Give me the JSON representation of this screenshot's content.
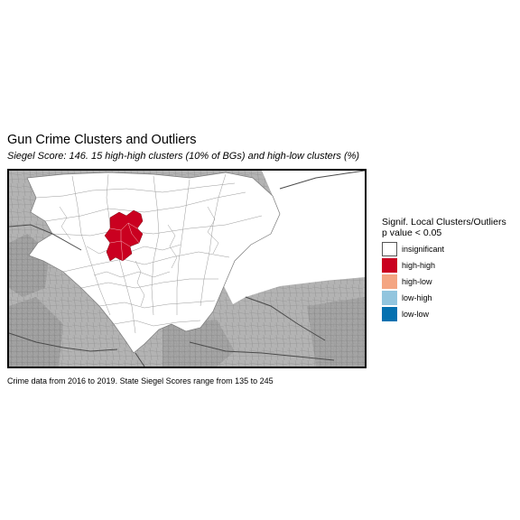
{
  "title": "Gun Crime Clusters and Outliers",
  "subtitle": "Siegel Score: 146. 15 high-high clusters (10% of BGs) and  high-low clusters (%)",
  "caption": "Crime data from 2016 to 2019. State Siegel Scores range from 135 to 245",
  "legend": {
    "title_line1": "Signif. Local Clusters/Outliers",
    "title_line2": "p value < 0.05",
    "items": [
      {
        "label": "insignificant",
        "color": "#FFFFFF"
      },
      {
        "label": "high-high",
        "color": "#CA0020"
      },
      {
        "label": "high-low",
        "color": "#F4A582"
      },
      {
        "label": "low-high",
        "color": "#92C5DE"
      },
      {
        "label": "low-low",
        "color": "#0571B0"
      }
    ]
  },
  "colors": {
    "basemap_fill": "#b3b3b3",
    "study_area_fill": "#ffffff",
    "block_group_outline": "#8c8c8c",
    "road_color": "#5a5a5a",
    "water_fill": "#ffffff"
  }
}
